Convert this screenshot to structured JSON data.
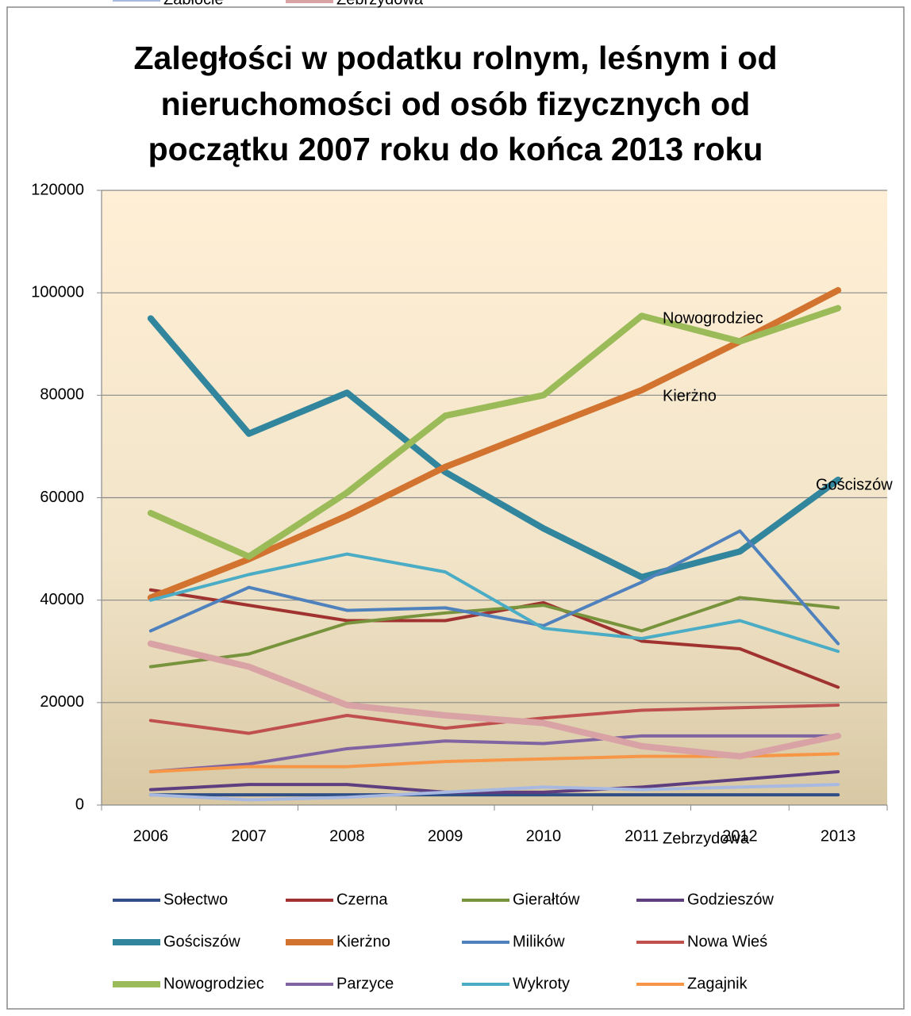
{
  "chart_data": {
    "type": "line",
    "title": [
      "Zaległości w podatku rolnym, leśnym i od",
      "nieruchomości od osób fizycznych od",
      "początku 2007 roku do końca 2013 roku"
    ],
    "categories": [
      "2006",
      "2007",
      "2008",
      "2009",
      "2010",
      "2011",
      "2012",
      "2013"
    ],
    "ylim": [
      0,
      120000
    ],
    "yticks": [
      0,
      20000,
      40000,
      60000,
      80000,
      100000,
      120000
    ],
    "grid": true,
    "legend": "bottom",
    "annotations": [
      "Nowogrodziec",
      "Kierżno",
      "Gościszów",
      "Zebrzydowa"
    ],
    "series": [
      {
        "name": "Sołectwo",
        "color": "#2F4F86",
        "width": 4,
        "values": [
          2000,
          2000,
          2000,
          2000,
          2000,
          2000,
          2000,
          2000
        ]
      },
      {
        "name": "Czerna",
        "color": "#A0332F",
        "width": 4,
        "values": [
          42000,
          39000,
          36000,
          36000,
          39500,
          32000,
          30500,
          23000
        ]
      },
      {
        "name": "Gierałtów",
        "color": "#77933C",
        "width": 4,
        "values": [
          27000,
          29500,
          35500,
          37500,
          39000,
          34000,
          40500,
          38500
        ]
      },
      {
        "name": "Godzieszów",
        "color": "#5F3E80",
        "width": 4,
        "values": [
          3000,
          4000,
          4000,
          2500,
          2500,
          3500,
          5000,
          6500
        ]
      },
      {
        "name": "Gościszów",
        "color": "#31859C",
        "width": 8,
        "values": [
          95000,
          72500,
          80500,
          65000,
          54000,
          44500,
          49500,
          63500
        ]
      },
      {
        "name": "Kierżno",
        "color": "#D2732F",
        "width": 8,
        "values": [
          40500,
          48000,
          56500,
          66000,
          73500,
          81000,
          90500,
          100500
        ]
      },
      {
        "name": "Milików",
        "color": "#4F81BD",
        "width": 4,
        "values": [
          34000,
          42500,
          38000,
          38500,
          35000,
          43500,
          53500,
          31500
        ]
      },
      {
        "name": "Nowa Wieś",
        "color": "#C0504D",
        "width": 4,
        "values": [
          16500,
          14000,
          17500,
          15000,
          17000,
          18500,
          19000,
          19500
        ]
      },
      {
        "name": "Nowogrodziec",
        "color": "#9BBB59",
        "width": 8,
        "values": [
          57000,
          48500,
          61000,
          76000,
          80000,
          95500,
          90500,
          97000
        ]
      },
      {
        "name": "Parzyce",
        "color": "#8064A2",
        "width": 4,
        "values": [
          6500,
          8000,
          11000,
          12500,
          12000,
          13500,
          13500,
          13500
        ]
      },
      {
        "name": "Wykroty",
        "color": "#4BACC6",
        "width": 4,
        "values": [
          40000,
          45000,
          49000,
          45500,
          34500,
          32500,
          36000,
          30000
        ]
      },
      {
        "name": "Zagajnik",
        "color": "#F79646",
        "width": 4,
        "values": [
          6500,
          7500,
          7500,
          8500,
          9000,
          9500,
          9500,
          10000
        ]
      },
      {
        "name": "Zabłocie",
        "color": "#A7B9E1",
        "width": 4,
        "values": [
          2000,
          1000,
          1500,
          2500,
          3500,
          3000,
          3500,
          4000
        ]
      },
      {
        "name": "Zebrzydowa",
        "color": "#D9A3A6",
        "width": 8,
        "values": [
          31500,
          27000,
          19500,
          17500,
          16000,
          11500,
          9500,
          13500
        ]
      }
    ]
  }
}
